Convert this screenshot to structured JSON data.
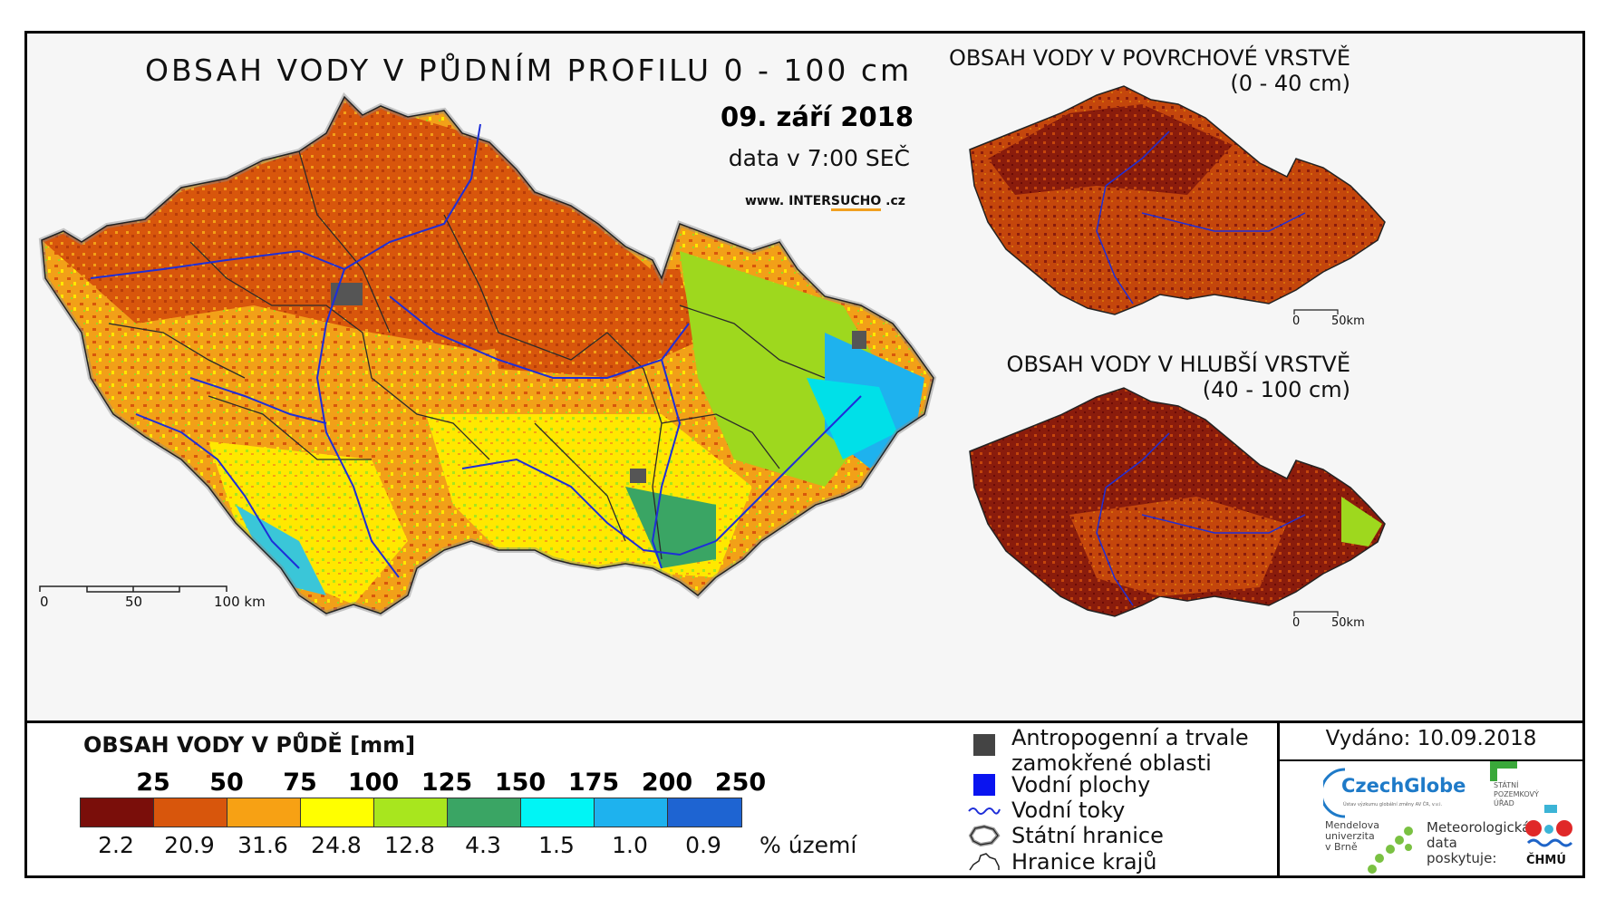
{
  "main_title": "OBSAH VODY V PŮDNÍM PROFILU 0 - 100 cm",
  "date": "09. září 2018",
  "data_time": "data v 7:00 SEČ",
  "website": {
    "prefix": "www. INTER",
    "highlight": "SUCHO",
    "suffix": " .cz"
  },
  "main_scale": {
    "labels": [
      "0",
      "50",
      "100 km"
    ]
  },
  "inset_top": {
    "title_line1": "OBSAH VODY V POVRCHOVÉ VRSTVĚ",
    "title_line2": "(0 - 40 cm)",
    "scale_labels": [
      "0",
      "50km"
    ]
  },
  "inset_bottom": {
    "title_line1": "OBSAH VODY V HLUBŠÍ VRSTVĚ",
    "title_line2": "(40 - 100 cm)",
    "scale_labels": [
      "0",
      "50km"
    ]
  },
  "legend": {
    "title": "OBSAH VODY V PŮDĚ [mm]",
    "thresholds": [
      "25",
      "50",
      "75",
      "100",
      "125",
      "150",
      "175",
      "200",
      "250"
    ],
    "colors": [
      "#7a0e0a",
      "#d8560c",
      "#f7a114",
      "#ffff00",
      "#a8e61e",
      "#3aa564",
      "#00f5f5",
      "#1eb2ee",
      "#1e64d2"
    ],
    "percentages": [
      "2.2",
      "20.9",
      "31.6",
      "24.8",
      "12.8",
      "4.3",
      "1.5",
      "1.0",
      "0.9"
    ],
    "percent_unit": "% území"
  },
  "symbols": {
    "anthropogenic_line1": "Antropogenní a trvale",
    "anthropogenic_line2": "zamokřené oblasti",
    "water_bodies": "Vodní plochy",
    "water_courses": "Vodní toky",
    "state_border": "Státní hranice",
    "region_border": "Hranice krajů"
  },
  "issued": "Vydáno: 10.09.2018",
  "logos": {
    "czechglobe": "CzechGlobe",
    "czechglobe_sub": "Ústav výzkumu globální změny AV ČR, v.v.i.",
    "spu_line1": "STÁTNÍ",
    "spu_line2": "POZEMKOVÝ",
    "spu_line3": "ÚŘAD",
    "mendel_line1": "Mendelova",
    "mendel_line2": "univerzita",
    "mendel_line3": "v Brně",
    "meteo_line1": "Meteorologická",
    "meteo_line2": "data",
    "meteo_line3": "poskytuje:",
    "chmu": "ČHMÚ"
  }
}
